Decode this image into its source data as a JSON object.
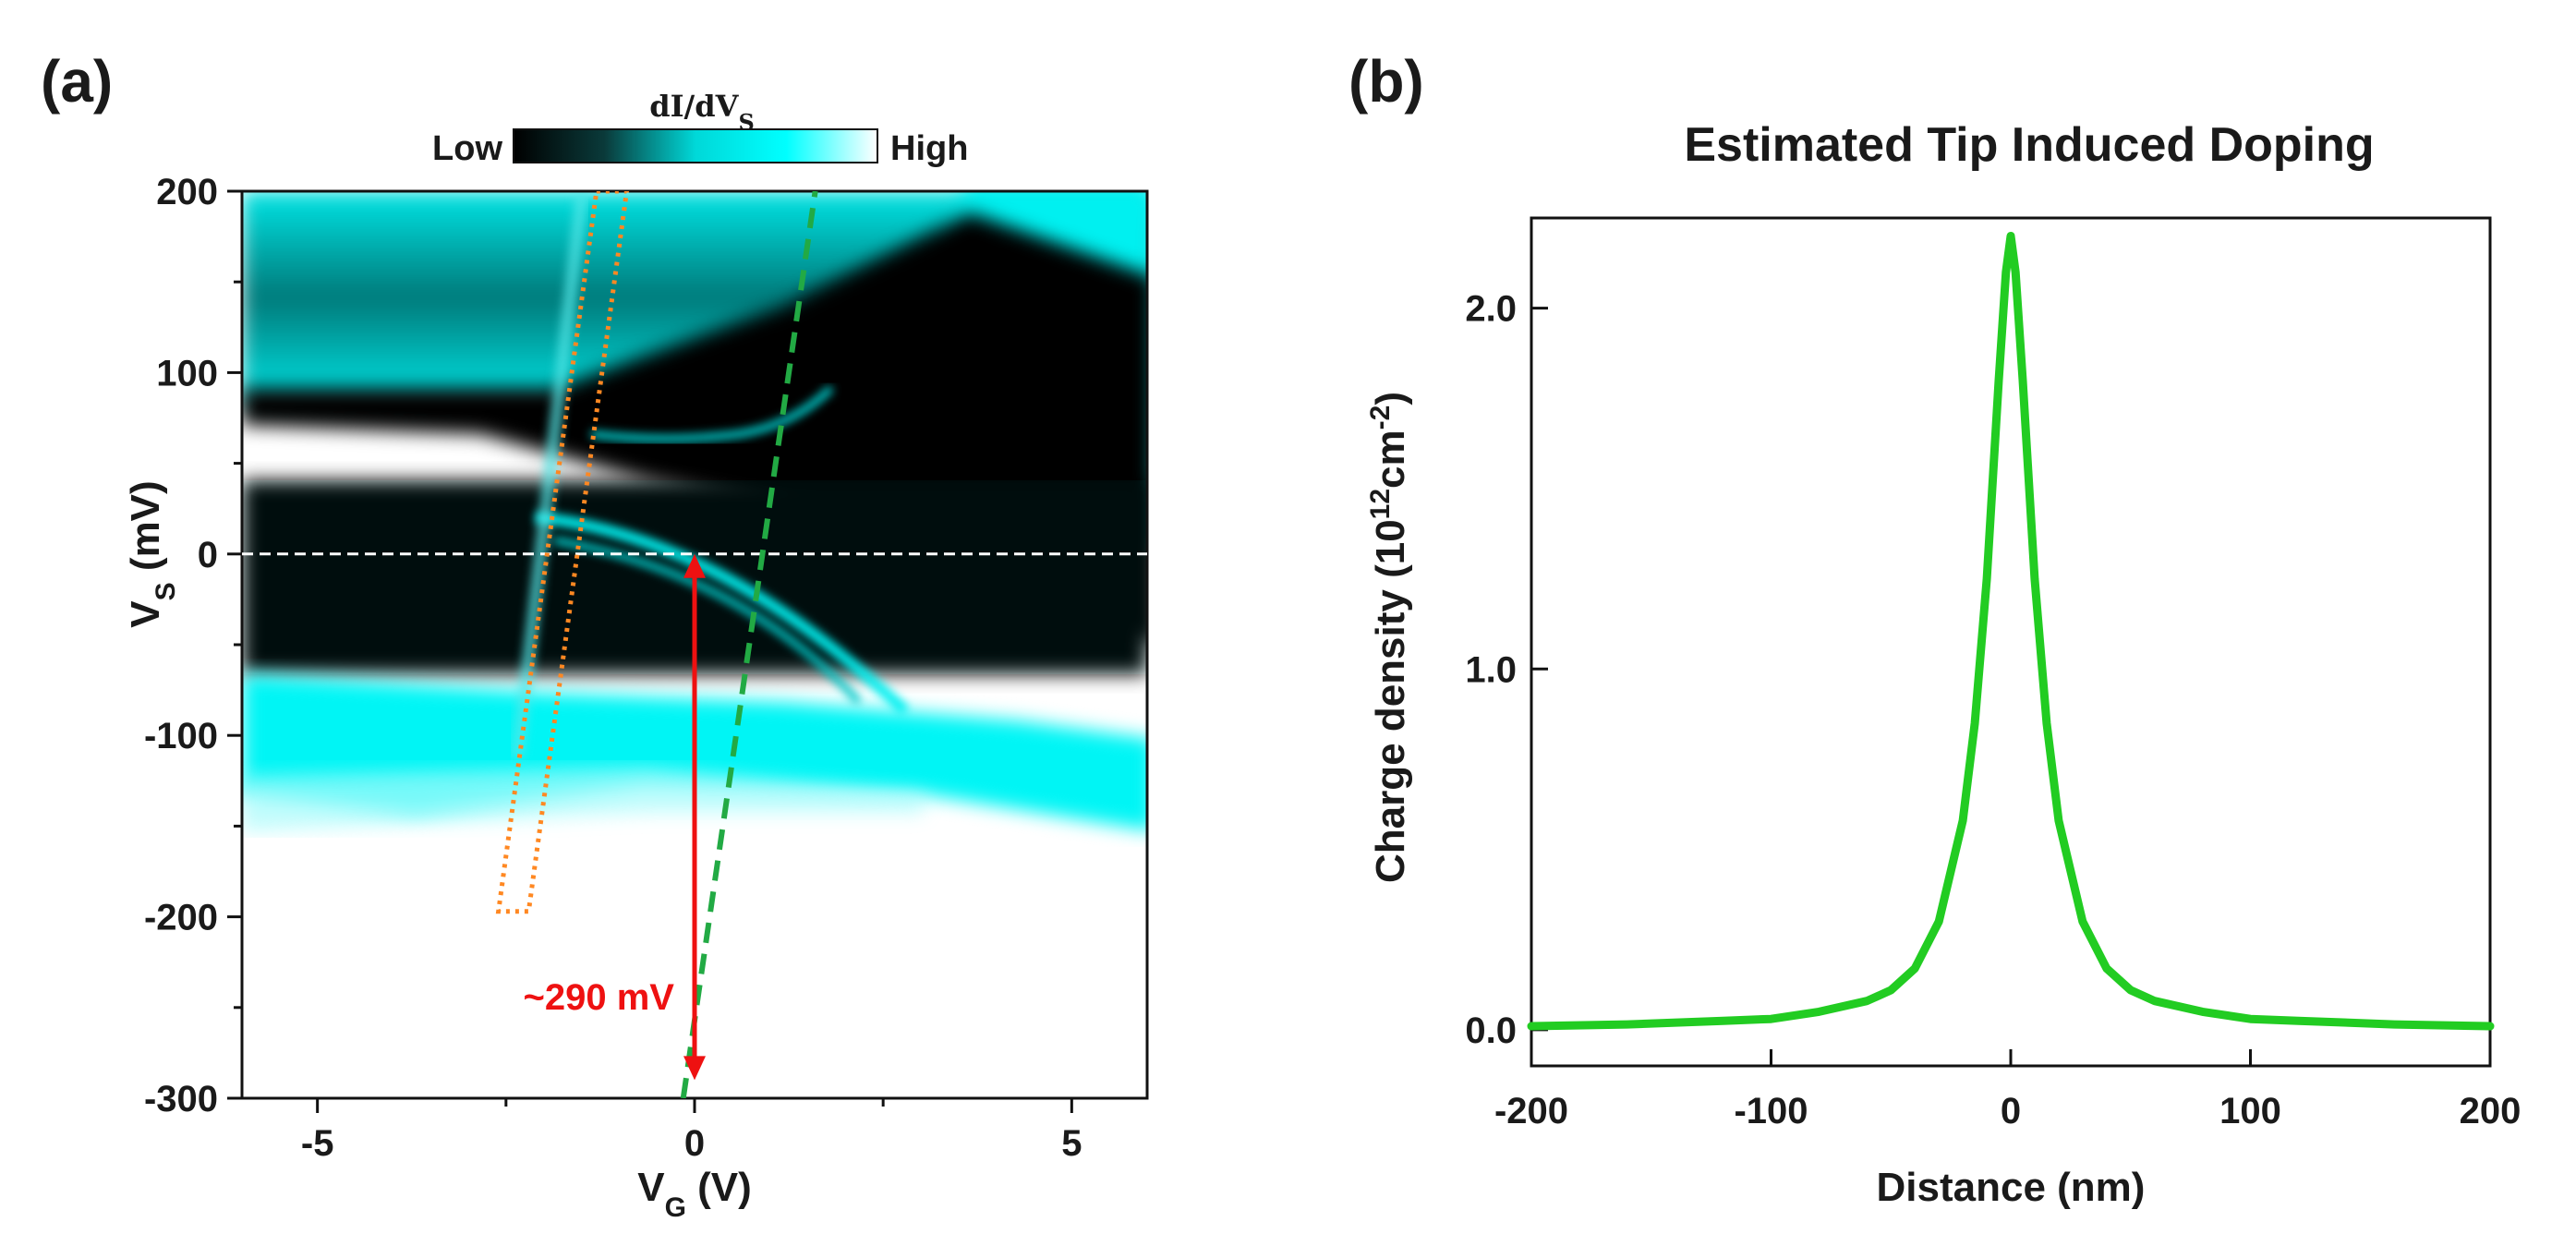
{
  "chart_data": [
    {
      "panel_label": "(a)",
      "type": "heatmap",
      "xlabel_main": "V",
      "xlabel_sub": "G",
      "xlabel_unit": " (V)",
      "ylabel_main": "V",
      "ylabel_sub": "S",
      "ylabel_unit": " (mV)",
      "xlim": [
        -6,
        6
      ],
      "ylim": [
        -300,
        200
      ],
      "x_ticks": [
        -5,
        0,
        5
      ],
      "y_ticks": [
        200,
        100,
        0,
        -100,
        -200,
        -300
      ],
      "colorbar": {
        "title_main": "dI/dV",
        "title_sub": "S",
        "low_label": "Low",
        "high_label": "High",
        "colors": [
          "#000000",
          "#0a3a3a",
          "#00d8d8",
          "#00ffff",
          "#ffffff"
        ]
      },
      "annotations": {
        "zero_line_y": 0,
        "dirac_line": {
          "x": [
            0.9,
            1.6
          ],
          "y": [
            0,
            200
          ],
          "color": "#22aa44"
        },
        "arrow": {
          "x": 0,
          "y_from": 0,
          "y_to": -290,
          "label": "~290 mV",
          "color": "#ee1111"
        },
        "box_corners": [
          [
            -1.3,
            200
          ],
          [
            -0.9,
            200
          ],
          [
            -2.2,
            -197
          ],
          [
            -2.6,
            -197
          ]
        ],
        "box_color": "#ff8822"
      }
    },
    {
      "panel_label": "(b)",
      "type": "line",
      "title": "Estimated Tip Induced Doping",
      "xlabel": "Distance (nm)",
      "ylabel_prefix": "Charge density (10",
      "ylabel_exp1": "12",
      "ylabel_mid": "cm",
      "ylabel_exp2": "-2",
      "ylabel_suffix": ")",
      "xlim": [
        -200,
        200
      ],
      "ylim": [
        -0.1,
        2.25
      ],
      "x_ticks": [
        -200,
        -100,
        0,
        100,
        200
      ],
      "y_ticks": [
        "0.0",
        "1.0",
        "2.0"
      ],
      "series": [
        {
          "color": "#22cc22",
          "x": [
            -200,
            -160,
            -120,
            -100,
            -80,
            -60,
            -50,
            -40,
            -30,
            -20,
            -15,
            -10,
            -5,
            -2,
            0,
            2,
            5,
            10,
            15,
            20,
            30,
            40,
            50,
            60,
            80,
            100,
            120,
            160,
            200
          ],
          "y": [
            0.01,
            0.015,
            0.025,
            0.03,
            0.05,
            0.08,
            0.11,
            0.17,
            0.3,
            0.58,
            0.85,
            1.25,
            1.8,
            2.1,
            2.2,
            2.1,
            1.8,
            1.25,
            0.85,
            0.58,
            0.3,
            0.17,
            0.11,
            0.08,
            0.05,
            0.03,
            0.025,
            0.015,
            0.01
          ]
        }
      ]
    }
  ]
}
